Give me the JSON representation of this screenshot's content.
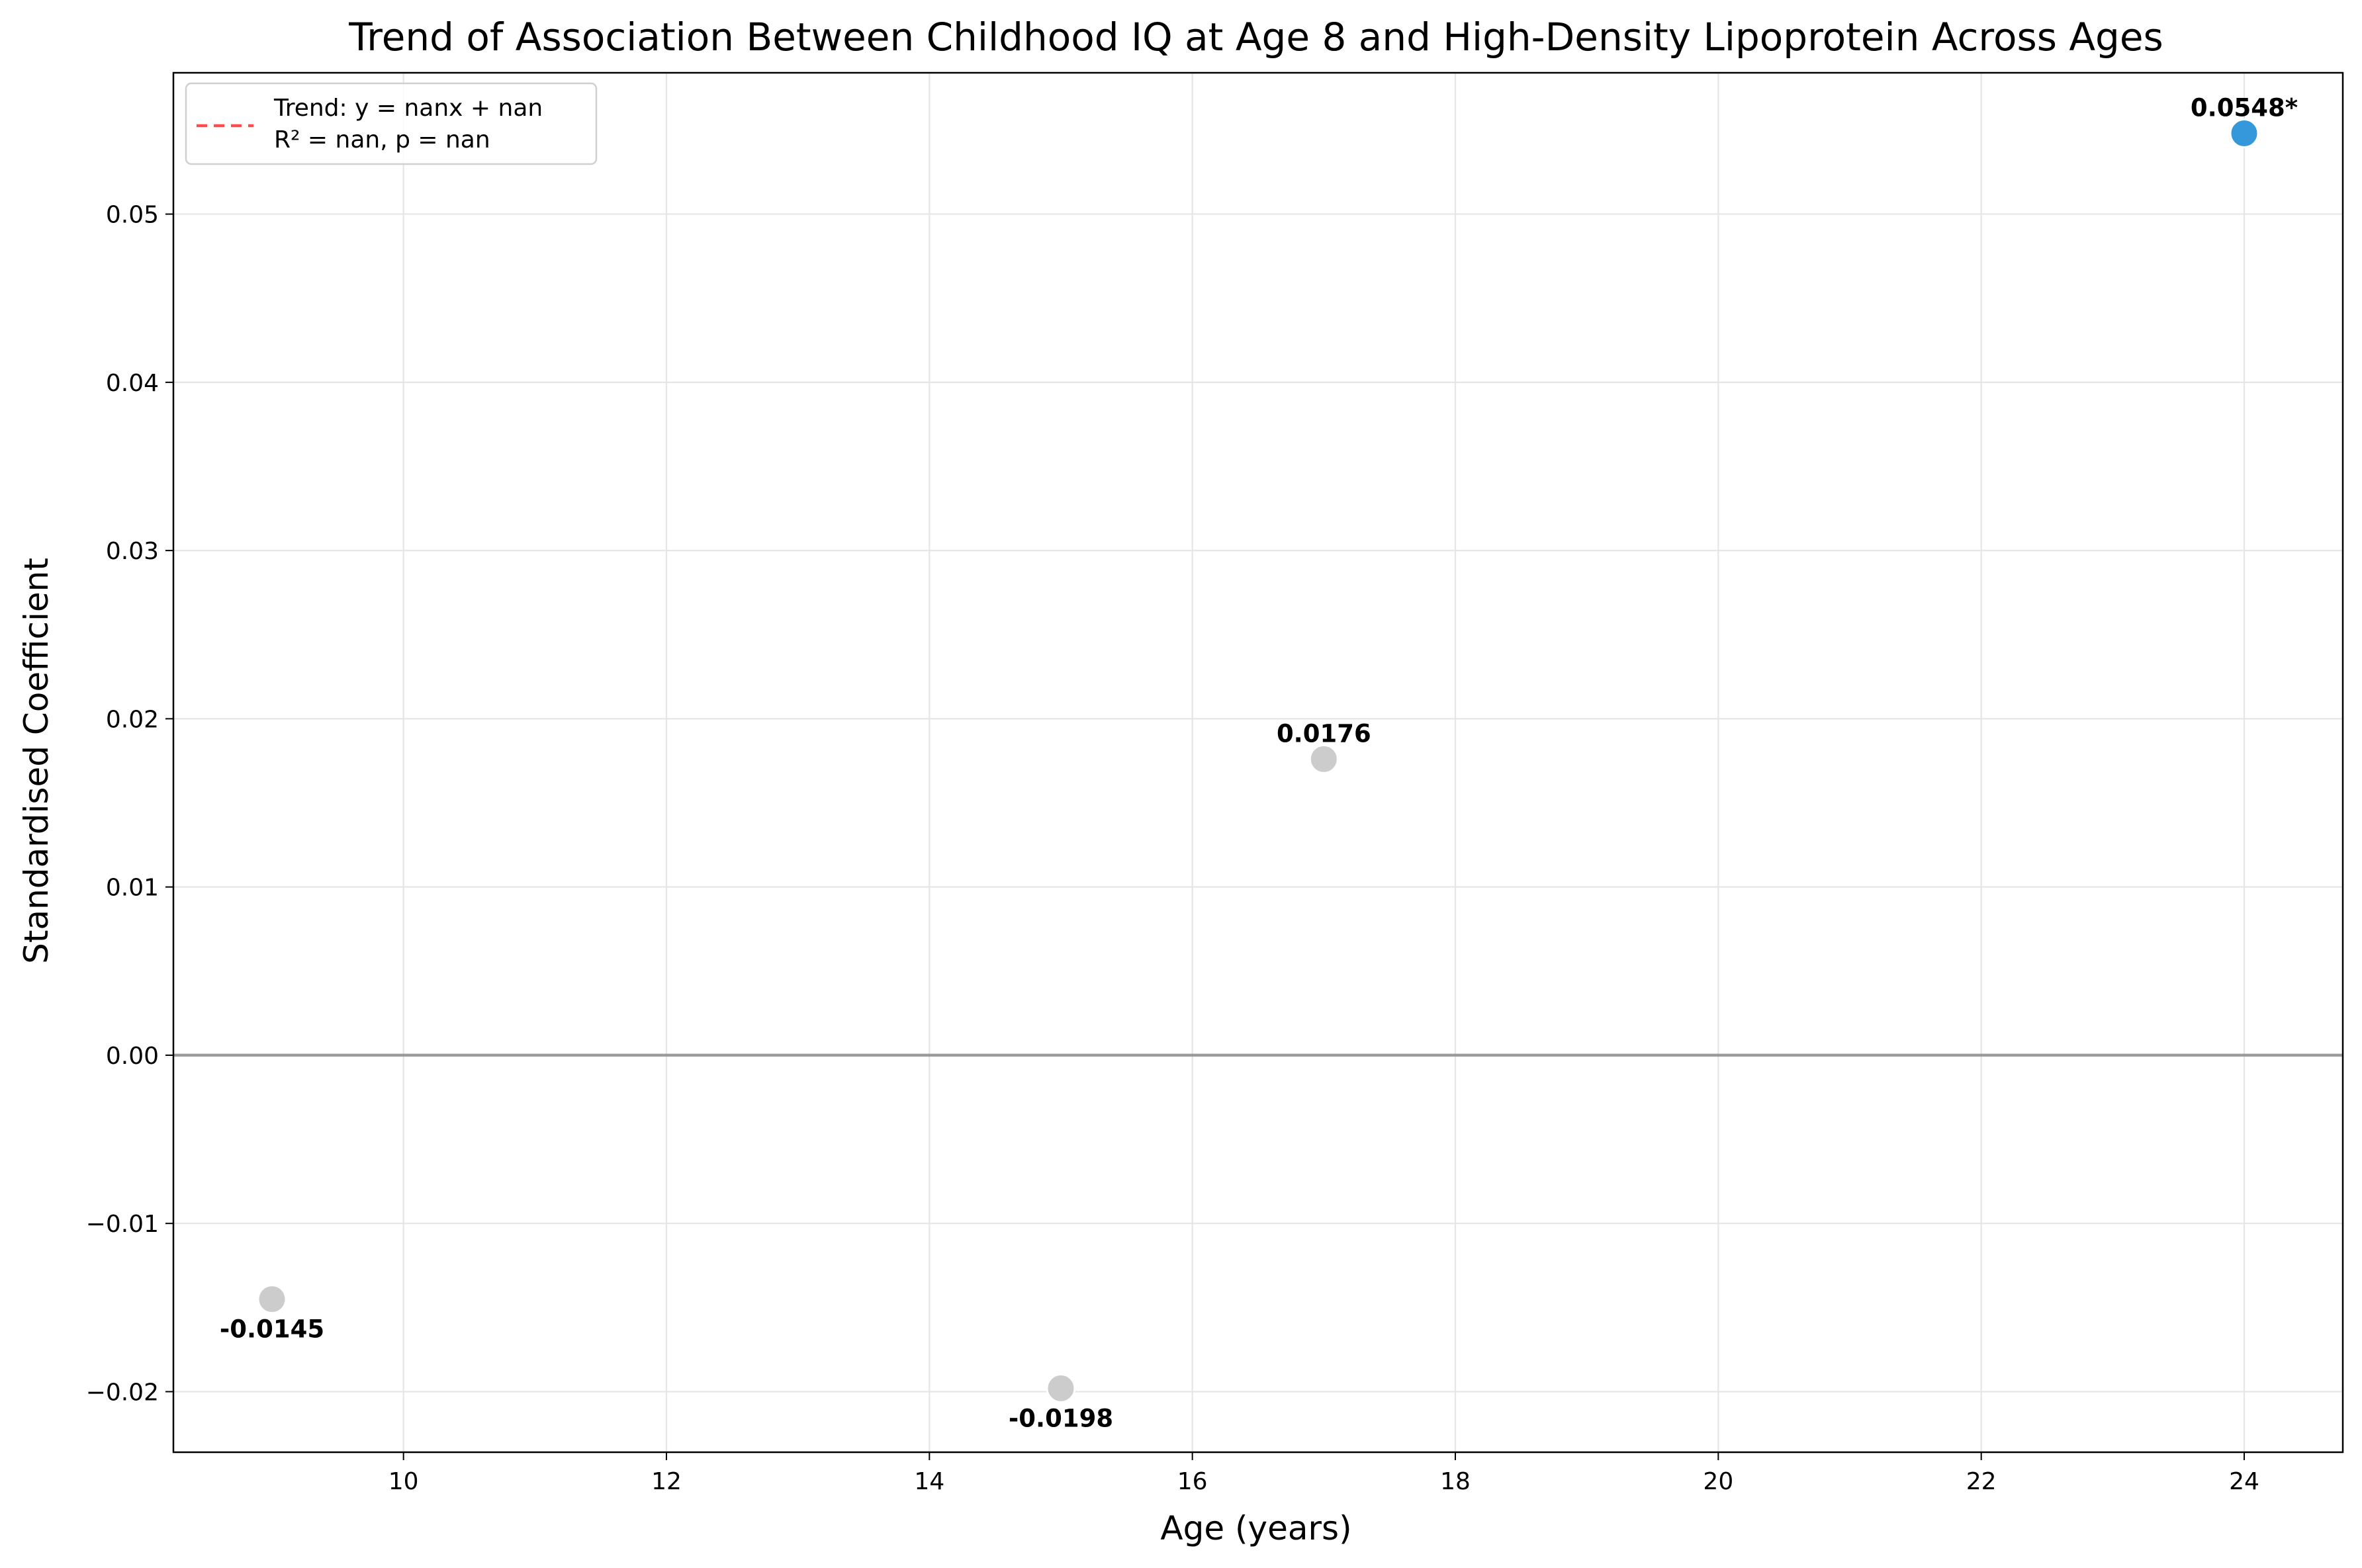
{
  "chart_data": {
    "type": "scatter",
    "title": "Trend of Association Between Childhood IQ at Age 8 and High-Density Lipoprotein Across Ages",
    "xlabel": "Age (years)",
    "ylabel": "Standardised Coefficient",
    "xlim": [
      8.25,
      24.75
    ],
    "ylim": [
      -0.0236,
      0.0584
    ],
    "x_ticks": [
      10,
      12,
      14,
      16,
      18,
      20,
      22,
      24
    ],
    "y_ticks": [
      -0.02,
      -0.01,
      0.0,
      0.01,
      0.02,
      0.03,
      0.04,
      0.05
    ],
    "x_tick_labels": [
      "10",
      "12",
      "14",
      "16",
      "18",
      "20",
      "22",
      "24"
    ],
    "y_tick_labels": [
      "−0.02",
      "−0.01",
      "0.00",
      "0.01",
      "0.02",
      "0.03",
      "0.04",
      "0.05"
    ],
    "grid": true,
    "reference_line_y": 0.0,
    "points": [
      {
        "x": 9,
        "y": -0.0145,
        "label": "-0.0145",
        "significant": false,
        "color": "#cccccc"
      },
      {
        "x": 15,
        "y": -0.0198,
        "label": "-0.0198",
        "significant": false,
        "color": "#cccccc"
      },
      {
        "x": 17,
        "y": 0.0176,
        "label": "0.0176",
        "significant": false,
        "color": "#cccccc"
      },
      {
        "x": 24,
        "y": 0.0548,
        "label": "0.0548*",
        "significant": true,
        "color": "#3498db"
      }
    ],
    "legend": {
      "placement": "top-left",
      "line_color": "#ff4d4d",
      "line1": "Trend: y = nanx + nan",
      "line2": "R² = nan, p = nan"
    }
  }
}
